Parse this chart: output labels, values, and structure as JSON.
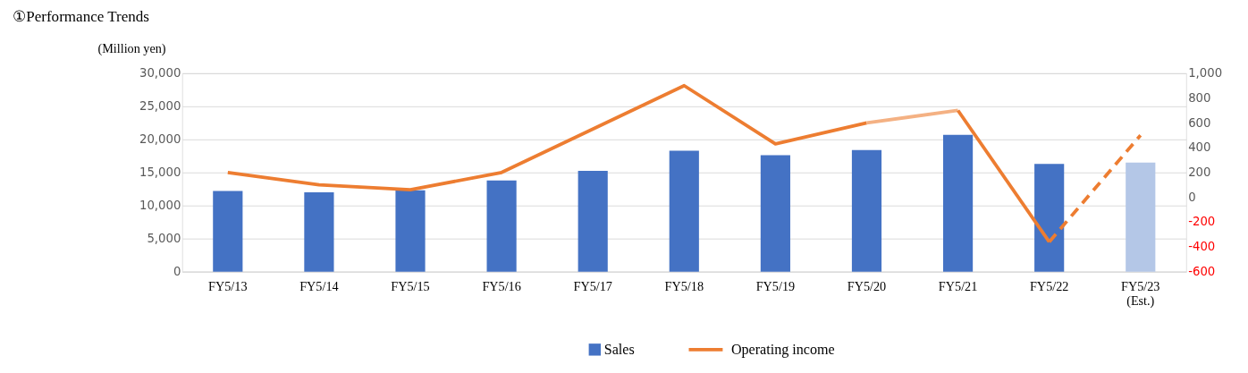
{
  "chart_data": {
    "type": "bar",
    "title": "①Performance Trends",
    "ylabel": "(Million yen)",
    "categories": [
      "FY5/13",
      "FY5/14",
      "FY5/15",
      "FY5/16",
      "FY5/17",
      "FY5/18",
      "FY5/19",
      "FY5/20",
      "FY5/21",
      "FY5/22",
      "FY5/23\n(Est.)"
    ],
    "series": [
      {
        "name": "Sales",
        "color": "#4472c4",
        "colors": [
          "#4472c4",
          "#4472c4",
          "#4472c4",
          "#4472c4",
          "#4472c4",
          "#4472c4",
          "#4472c4",
          "#4472c4",
          "#4472c4",
          "#4472c4",
          "#b4c7e7"
        ],
        "values": [
          12200,
          12000,
          12300,
          13800,
          15250,
          18300,
          17600,
          18400,
          20700,
          16300,
          16500
        ]
      },
      {
        "name": "Operating income",
        "type": "line",
        "axis": "y2",
        "color": "#ed7d31",
        "values": [
          200,
          100,
          60,
          200,
          550,
          900,
          430,
          600,
          null,
          null,
          null
        ]
      },
      {
        "type": "line",
        "axis": "y2",
        "color": "#f4b183",
        "values": [
          null,
          null,
          null,
          null,
          null,
          null,
          null,
          600,
          700,
          null,
          null
        ]
      },
      {
        "type": "line",
        "axis": "y2",
        "color": "#ed7d31",
        "values": [
          null,
          null,
          null,
          null,
          null,
          null,
          null,
          null,
          700,
          -360,
          null
        ]
      },
      {
        "type": "line",
        "axis": "y2",
        "color": "#ed7d31",
        "line_style": "dashed",
        "values": [
          null,
          null,
          null,
          null,
          null,
          null,
          null,
          null,
          null,
          -360,
          500
        ]
      }
    ],
    "ylim": [
      0,
      30000
    ],
    "yticks": [
      0,
      {
        "value": 5000,
        "label": "5,000"
      },
      {
        "value": 10000,
        "label": "10,000"
      },
      {
        "value": 15000,
        "label": "15,000"
      },
      {
        "value": 20000,
        "label": "20,000"
      },
      {
        "value": 25000,
        "label": "25,000"
      },
      {
        "value": 30000,
        "label": "30,000"
      }
    ],
    "y2lim": [
      -600,
      1000
    ],
    "y2ticks": [
      -600,
      -400,
      -200,
      0,
      200,
      400,
      600,
      800,
      {
        "value": 1000,
        "label": "1,000"
      }
    ],
    "grid": "y",
    "legend": "bottom"
  }
}
